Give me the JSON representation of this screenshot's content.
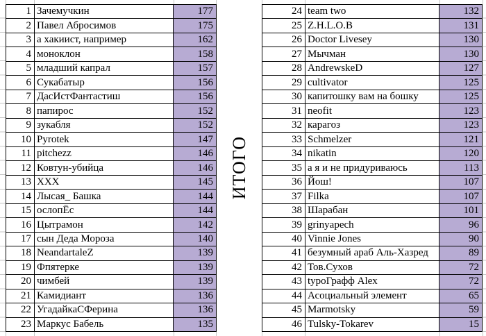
{
  "total_label": "ИТОГО",
  "colors": {
    "score_bg": "#b7abd3",
    "border": "#000000",
    "gridline": "#c4c4c4"
  },
  "left_table": {
    "rows": [
      {
        "rank": "1",
        "name": "Зачемучкин",
        "score": "177"
      },
      {
        "rank": "2",
        "name": "Павел Абросимов",
        "score": "175"
      },
      {
        "rank": "3",
        "name": "а хакиист, например",
        "score": "162"
      },
      {
        "rank": "4",
        "name": "моноклон",
        "score": "158"
      },
      {
        "rank": "5",
        "name": "младший капрал",
        "score": "157"
      },
      {
        "rank": "6",
        "name": "Сукабатыр",
        "score": "156"
      },
      {
        "rank": "7",
        "name": "ДасИстФантастиш",
        "score": "156"
      },
      {
        "rank": "8",
        "name": "папирос",
        "score": "152"
      },
      {
        "rank": "9",
        "name": "зукабля",
        "score": "152"
      },
      {
        "rank": "10",
        "name": "Pyrotek",
        "score": "147"
      },
      {
        "rank": "11",
        "name": "pitchezz",
        "score": "146"
      },
      {
        "rank": "12",
        "name": "Ковтун-убийца",
        "score": "146"
      },
      {
        "rank": "13",
        "name": "XXX",
        "score": "145"
      },
      {
        "rank": "14",
        "name": "Лысая_ Башка",
        "score": "144"
      },
      {
        "rank": "15",
        "name": "ослопЁс",
        "score": "144"
      },
      {
        "rank": "16",
        "name": "Цытрамон",
        "score": "142"
      },
      {
        "rank": "17",
        "name": "сын Деда Мороза",
        "score": "140"
      },
      {
        "rank": "18",
        "name": "NeandartaleZ",
        "score": "139"
      },
      {
        "rank": "19",
        "name": "Фпятерке",
        "score": "139"
      },
      {
        "rank": "20",
        "name": "чимбей",
        "score": "139"
      },
      {
        "rank": "21",
        "name": "Камидиант",
        "score": "136"
      },
      {
        "rank": "22",
        "name": "УгадайкаСФерина",
        "score": "136"
      },
      {
        "rank": "23",
        "name": "Маркус Бабель",
        "score": "135"
      }
    ]
  },
  "right_table": {
    "rows": [
      {
        "rank": "24",
        "name": "team two",
        "score": "132"
      },
      {
        "rank": "25",
        "name": "Z.H.L.O.B",
        "score": "131"
      },
      {
        "rank": "26",
        "name": "Doctor Livesey",
        "score": "130"
      },
      {
        "rank": "27",
        "name": "Мычман",
        "score": "130"
      },
      {
        "rank": "28",
        "name": "AndrewskeD",
        "score": "127"
      },
      {
        "rank": "29",
        "name": "cultivator",
        "score": "125"
      },
      {
        "rank": "30",
        "name": "капитошку вам на бошку",
        "score": "125"
      },
      {
        "rank": "31",
        "name": "neofit",
        "score": "123"
      },
      {
        "rank": "32",
        "name": "карагоз",
        "score": "123"
      },
      {
        "rank": "33",
        "name": "Schmelzer",
        "score": "121"
      },
      {
        "rank": "34",
        "name": "nikatin",
        "score": "120"
      },
      {
        "rank": "35",
        "name": "а я и не придуриваюсь",
        "score": "113"
      },
      {
        "rank": "36",
        "name": "Йош!",
        "score": "107"
      },
      {
        "rank": "37",
        "name": "Filka",
        "score": "107"
      },
      {
        "rank": "38",
        "name": "Шарабан",
        "score": "101"
      },
      {
        "rank": "39",
        "name": "grinyapech",
        "score": "96"
      },
      {
        "rank": "40",
        "name": "Vinnie Jones",
        "score": "90"
      },
      {
        "rank": "41",
        "name": "безумный араб Аль-Хазред",
        "score": "89"
      },
      {
        "rank": "42",
        "name": "Тов.Сухов",
        "score": "72"
      },
      {
        "rank": "43",
        "name": "typoГрафф Alex",
        "score": "72"
      },
      {
        "rank": "44",
        "name": "Асоциальный элемент",
        "score": "65"
      },
      {
        "rank": "45",
        "name": "Marmotsky",
        "score": "59"
      },
      {
        "rank": "46",
        "name": "Tulsky-Tokarev",
        "score": "15"
      }
    ]
  }
}
